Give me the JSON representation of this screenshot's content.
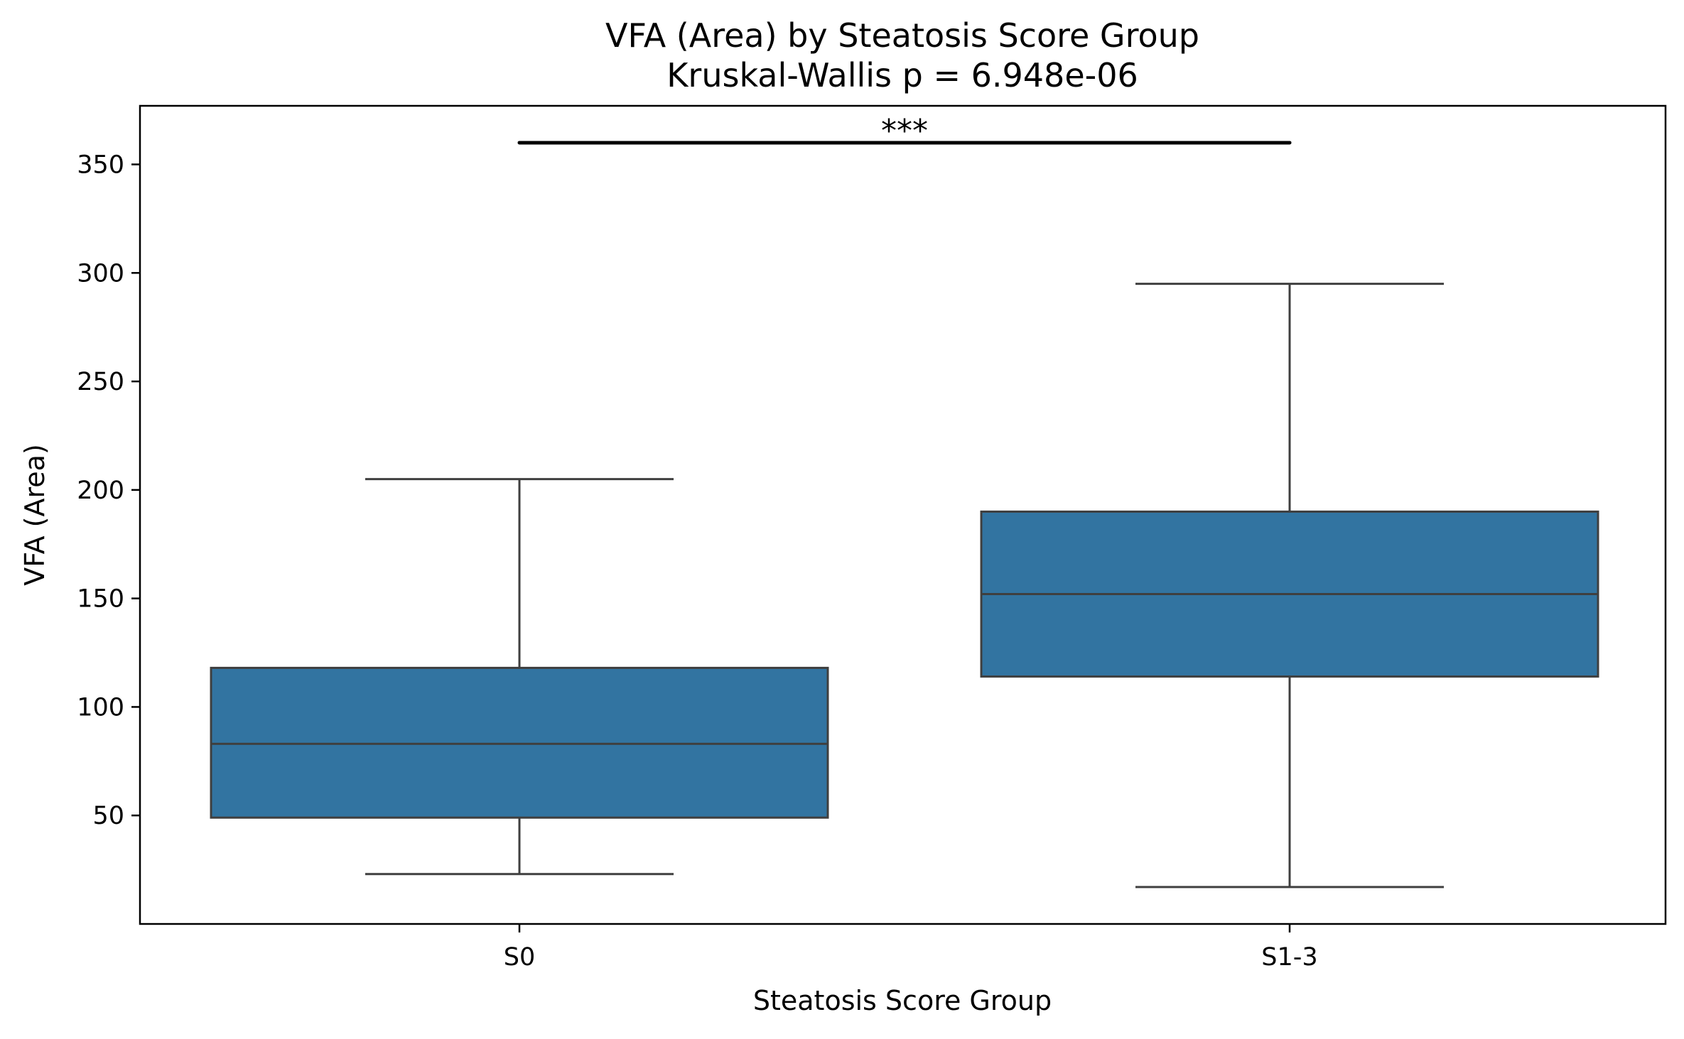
{
  "chart_data": {
    "type": "box",
    "title": "VFA (Area) by Steatosis Score Group",
    "subtitle": "Kruskal-Wallis p = 6.948e-06",
    "xlabel": "Steatosis Score Group",
    "ylabel": "VFA (Area)",
    "categories": [
      "S0",
      "S1-3"
    ],
    "yticks": [
      50,
      100,
      150,
      200,
      250,
      300,
      350
    ],
    "ylim": [
      0,
      377
    ],
    "grid": false,
    "legend": "none",
    "colors": {
      "box_fill": "#3274a1",
      "box_edge": "#3f3f3f",
      "axis": "#000000",
      "annotation": "#000000"
    },
    "boxes": [
      {
        "category": "S0",
        "whisker_low": 23,
        "q1": 49,
        "median": 83,
        "q3": 118,
        "whisker_high": 205
      },
      {
        "category": "S1-3",
        "whisker_low": 17,
        "q1": 114,
        "median": 152,
        "q3": 190,
        "whisker_high": 295
      }
    ],
    "annotation": {
      "text": "***",
      "from": "S0",
      "to": "S1-3",
      "y": 360
    }
  }
}
